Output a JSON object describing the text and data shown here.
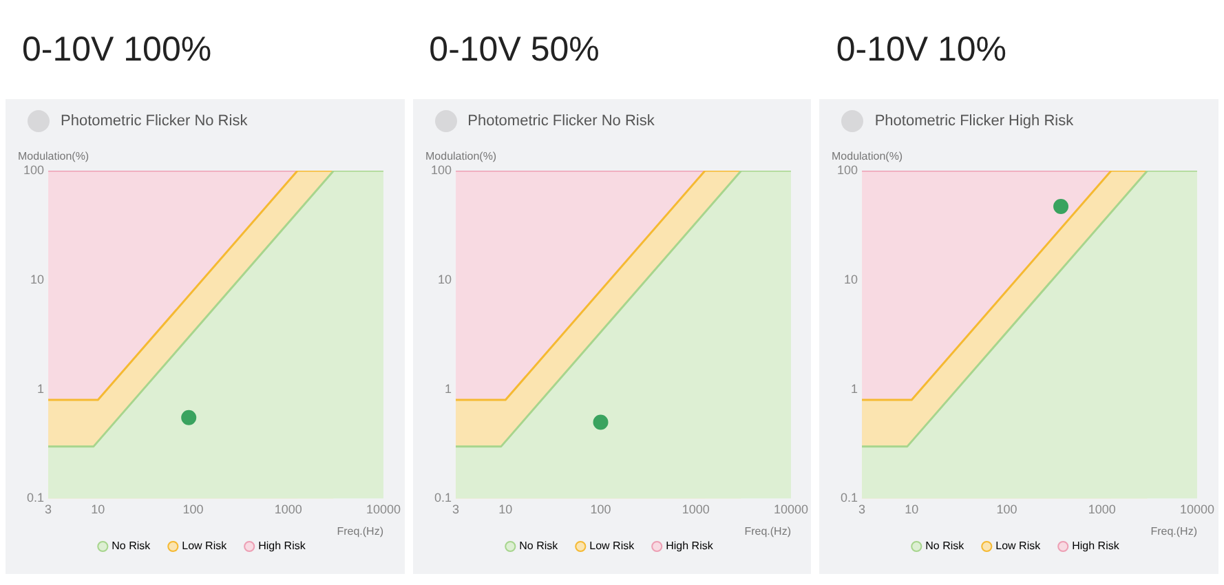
{
  "chart_data": [
    {
      "type": "area",
      "title": "0-10V 100%",
      "subtitle": "Photometric Flicker No Risk",
      "xlabel": "Freq.(Hz)",
      "ylabel": "Modulation(%)",
      "log": "xy",
      "xlim": [
        3,
        10000
      ],
      "ylim": [
        0.1,
        100
      ],
      "xticks": [
        3,
        10,
        100,
        1000,
        10000
      ],
      "yticks": [
        0.1,
        1,
        10,
        100
      ],
      "grid": false,
      "legend": "bottom",
      "series": [
        {
          "name": "No Risk",
          "color": "#ddefd3",
          "x": [
            3,
            9,
            3000,
            10000
          ],
          "values": [
            0.3,
            0.3,
            100,
            100
          ]
        },
        {
          "name": "Low Risk",
          "color": "#fbe4b0",
          "x": [
            3,
            10,
            1250,
            3000
          ],
          "values": [
            0.8,
            0.8,
            100,
            100
          ]
        },
        {
          "name": "High Risk",
          "color": "#f8dae2",
          "x": [
            3,
            1250
          ],
          "values": [
            100,
            100
          ]
        },
        {
          "type": "scatter",
          "marker": "circle",
          "color": "#3aa35f",
          "x": [
            90
          ],
          "values": [
            0.55
          ]
        }
      ]
    },
    {
      "type": "area",
      "title": "0-10V 50%",
      "subtitle": "Photometric Flicker No Risk",
      "xlabel": "Freq.(Hz)",
      "ylabel": "Modulation(%)",
      "log": "xy",
      "xlim": [
        3,
        10000
      ],
      "ylim": [
        0.1,
        100
      ],
      "xticks": [
        3,
        10,
        100,
        1000,
        10000
      ],
      "yticks": [
        0.1,
        1,
        10,
        100
      ],
      "grid": false,
      "legend": "bottom",
      "series": [
        {
          "name": "No Risk",
          "color": "#ddefd3",
          "x": [
            3,
            9,
            3000,
            10000
          ],
          "values": [
            0.3,
            0.3,
            100,
            100
          ]
        },
        {
          "name": "Low Risk",
          "color": "#fbe4b0",
          "x": [
            3,
            10,
            1250,
            3000
          ],
          "values": [
            0.8,
            0.8,
            100,
            100
          ]
        },
        {
          "name": "High Risk",
          "color": "#f8dae2",
          "x": [
            3,
            1250
          ],
          "values": [
            100,
            100
          ]
        },
        {
          "type": "scatter",
          "marker": "circle",
          "color": "#3aa35f",
          "x": [
            100
          ],
          "values": [
            0.5
          ]
        }
      ]
    },
    {
      "type": "area",
      "title": "0-10V 10%",
      "subtitle": "Photometric Flicker High Risk",
      "xlabel": "Freq.(Hz)",
      "ylabel": "Modulation(%)",
      "log": "xy",
      "xlim": [
        3,
        10000
      ],
      "ylim": [
        0.1,
        100
      ],
      "xticks": [
        3,
        10,
        100,
        1000,
        10000
      ],
      "yticks": [
        0.1,
        1,
        10,
        100
      ],
      "grid": false,
      "legend": "bottom",
      "series": [
        {
          "name": "No Risk",
          "color": "#ddefd3",
          "x": [
            3,
            9,
            3000,
            10000
          ],
          "values": [
            0.3,
            0.3,
            100,
            100
          ]
        },
        {
          "name": "Low Risk",
          "color": "#fbe4b0",
          "x": [
            3,
            10,
            1250,
            3000
          ],
          "values": [
            0.8,
            0.8,
            100,
            100
          ]
        },
        {
          "name": "High Risk",
          "color": "#f8dae2",
          "x": [
            3,
            1250
          ],
          "values": [
            100,
            100
          ]
        },
        {
          "type": "scatter",
          "marker": "circle",
          "color": "#3aa35f",
          "x": [
            370
          ],
          "values": [
            47
          ]
        }
      ]
    }
  ]
}
